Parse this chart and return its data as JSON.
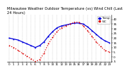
{
  "title": "Milwaukee Weather Outdoor Temperature (vs) Wind Chill (Last 24 Hours)",
  "temp_color": "#0000dd",
  "windchill_color": "#dd0000",
  "background_color": "#ffffff",
  "plot_bg_color": "#ffffff",
  "grid_color": "#888888",
  "ylim": [
    -5,
    45
  ],
  "ytick_values": [
    40,
    35,
    30,
    25,
    20,
    15,
    10,
    5,
    0,
    -5
  ],
  "ytick_labels": [
    "40",
    "35",
    "30",
    "25",
    "20",
    "15",
    "10",
    "5",
    "0",
    "-5"
  ],
  "hours": [
    0,
    1,
    2,
    3,
    4,
    5,
    6,
    7,
    8,
    9,
    10,
    11,
    12,
    13,
    14,
    15,
    16,
    17,
    18,
    19,
    20,
    21,
    22,
    23
  ],
  "temp": [
    20,
    19,
    18,
    16,
    14,
    12,
    10,
    12,
    16,
    22,
    27,
    31,
    33,
    34,
    35,
    36,
    36,
    35,
    32,
    28,
    24,
    20,
    17,
    15
  ],
  "windchill": [
    12,
    10,
    7,
    4,
    1,
    -2,
    -5,
    -3,
    4,
    14,
    21,
    27,
    31,
    33,
    35,
    37,
    37,
    33,
    28,
    22,
    16,
    11,
    7,
    5
  ],
  "title_fontsize": 3.8,
  "tick_fontsize": 3.0,
  "linewidth_temp": 0.9,
  "linewidth_wc": 0.9,
  "markersize": 1.2
}
